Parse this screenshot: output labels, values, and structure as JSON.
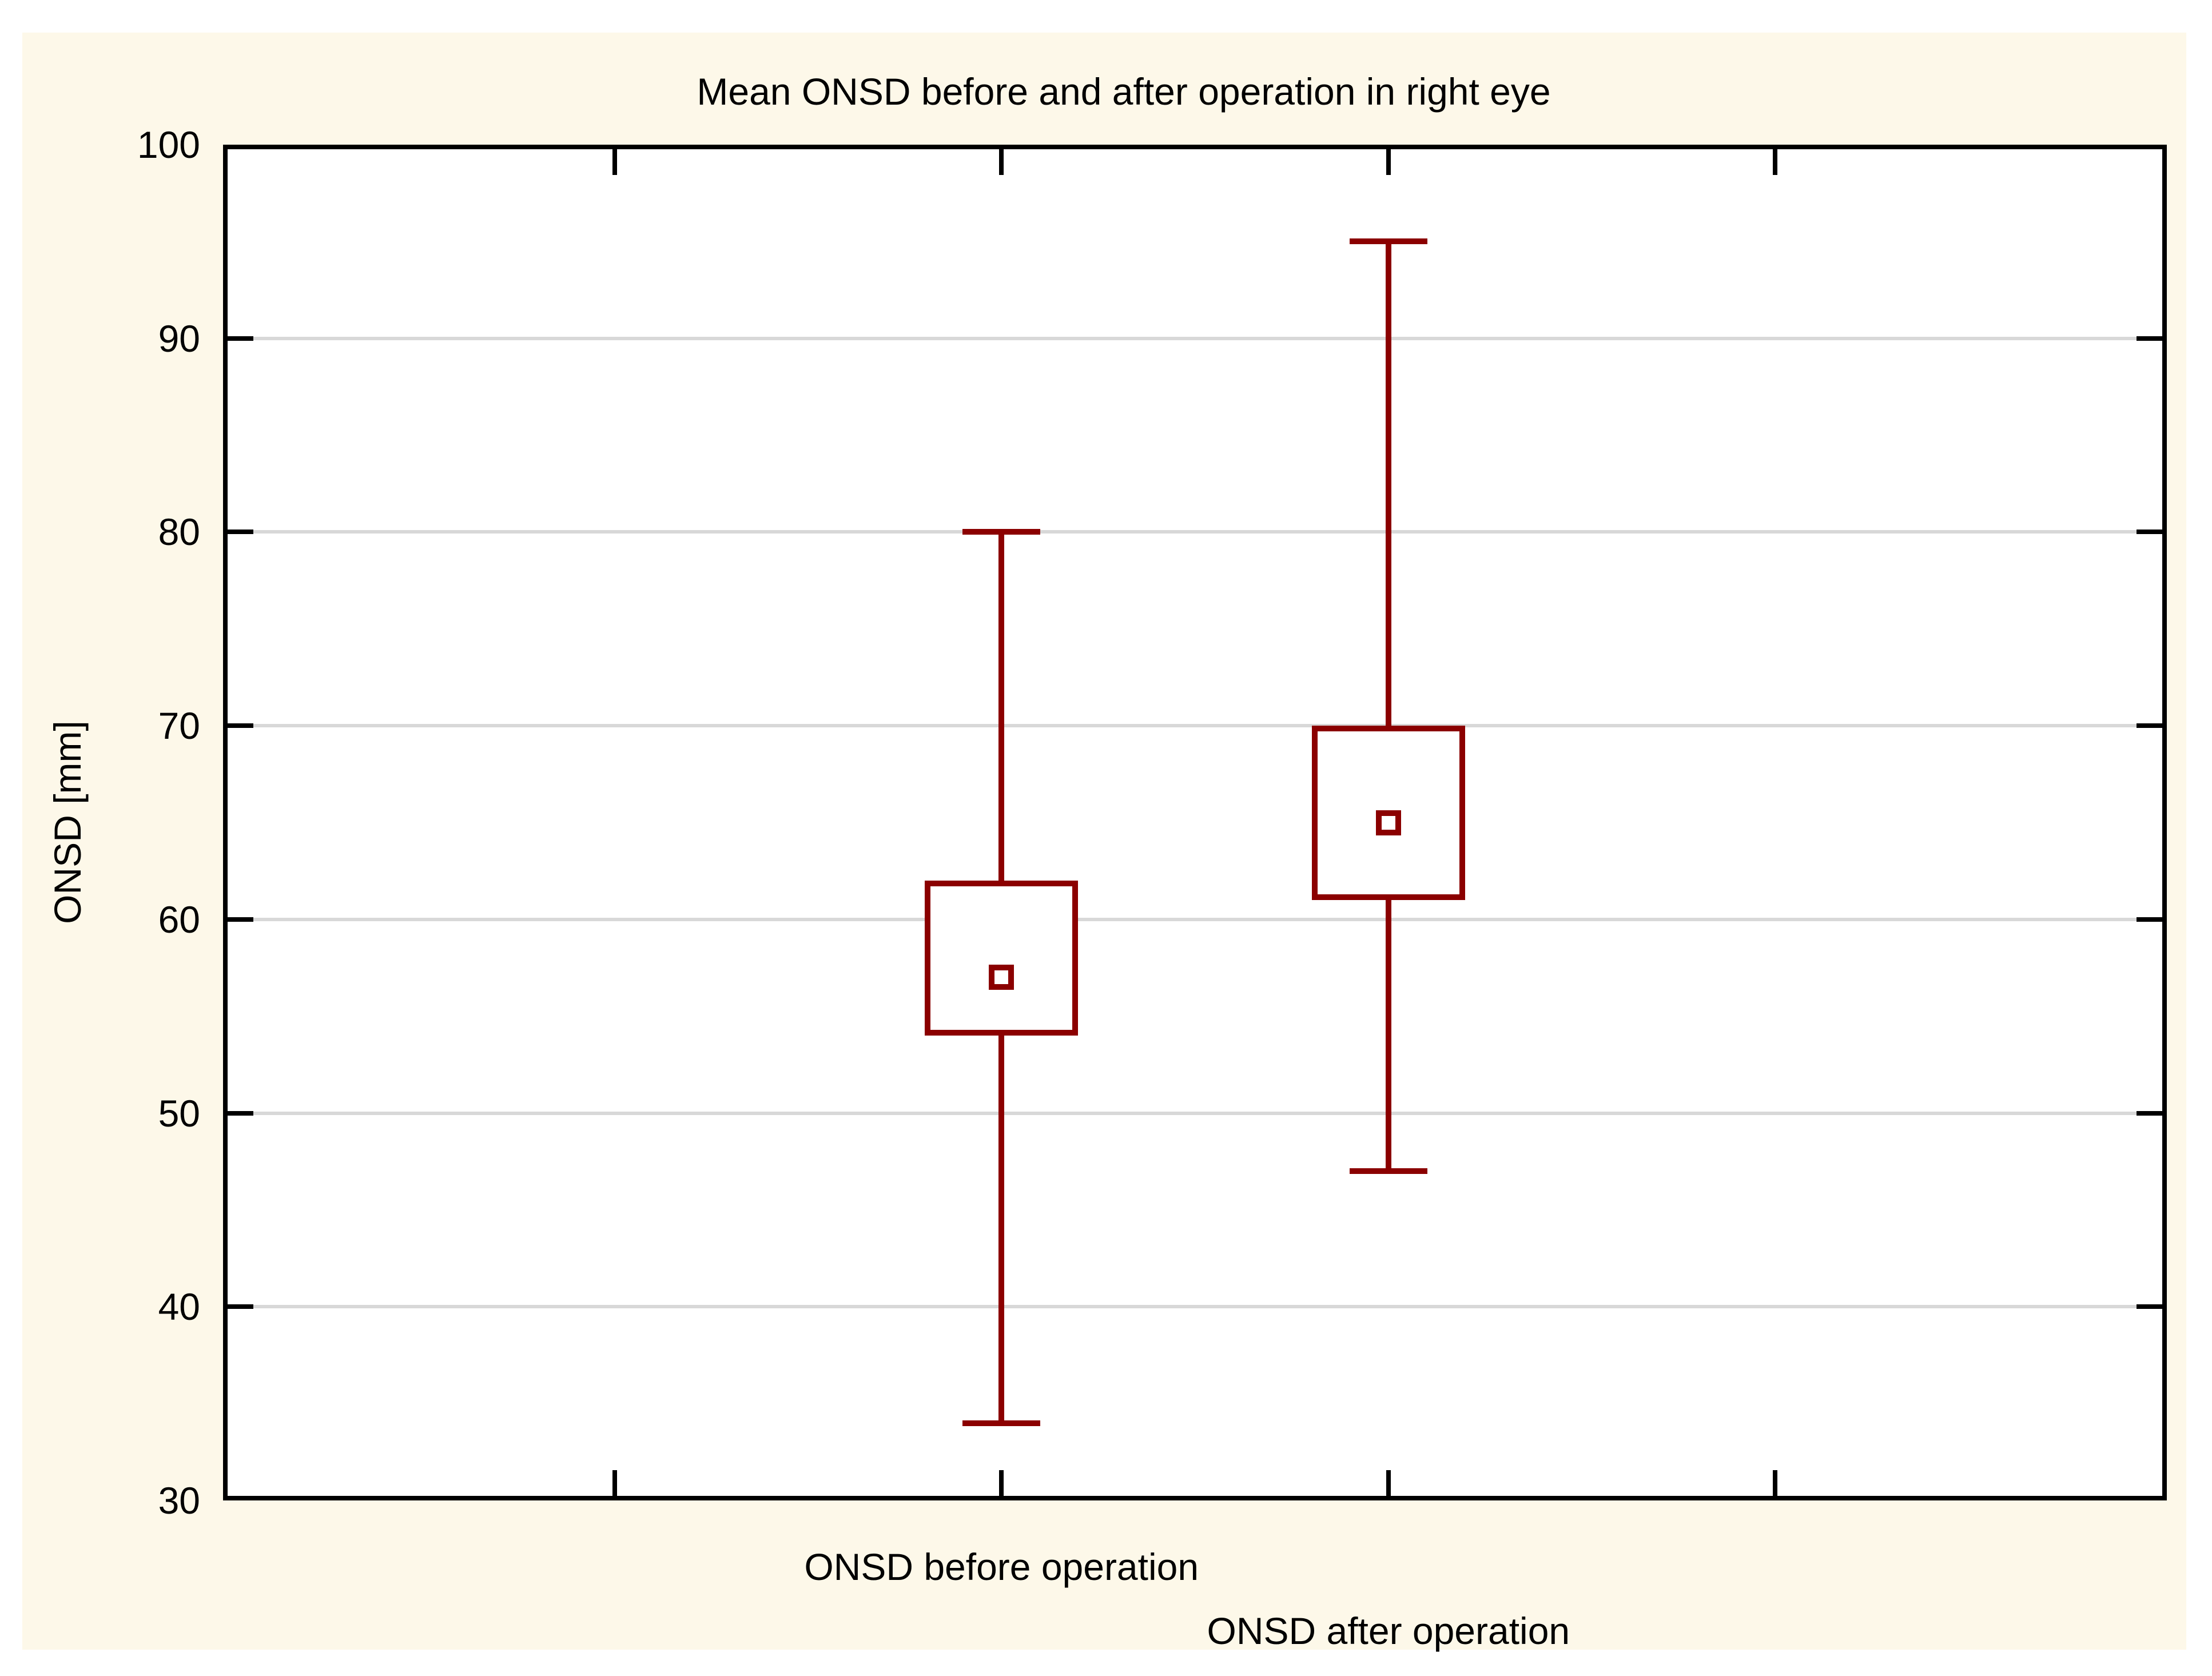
{
  "chart_data": {
    "type": "box",
    "title": "Mean ONSD before and after operation in right eye",
    "ylabel": "ONSD [mm]",
    "xlabel": "",
    "ylim": [
      30,
      100
    ],
    "yticks": [
      100,
      90,
      80,
      70,
      60,
      50,
      40,
      30
    ],
    "grid": "horizontal",
    "legend": "none",
    "categories": [
      "ONSD before operation",
      "ONSD after operation"
    ],
    "series": [
      {
        "name": "ONSD before operation",
        "mean": 57,
        "box_low": 54,
        "box_high": 62,
        "whisker_low": 34,
        "whisker_high": 80
      },
      {
        "name": "ONSD after operation",
        "mean": 65,
        "box_low": 61,
        "box_high": 70,
        "whisker_low": 47,
        "whisker_high": 95
      }
    ],
    "colors": {
      "series_outline": "#8B0000",
      "grid_line": "#D8D8D8",
      "frame": "#000000",
      "text": "#000000",
      "panel_background": "#FDF8E9",
      "plot_background": "#FFFFFF",
      "page_background": "#FFFFFF"
    }
  }
}
